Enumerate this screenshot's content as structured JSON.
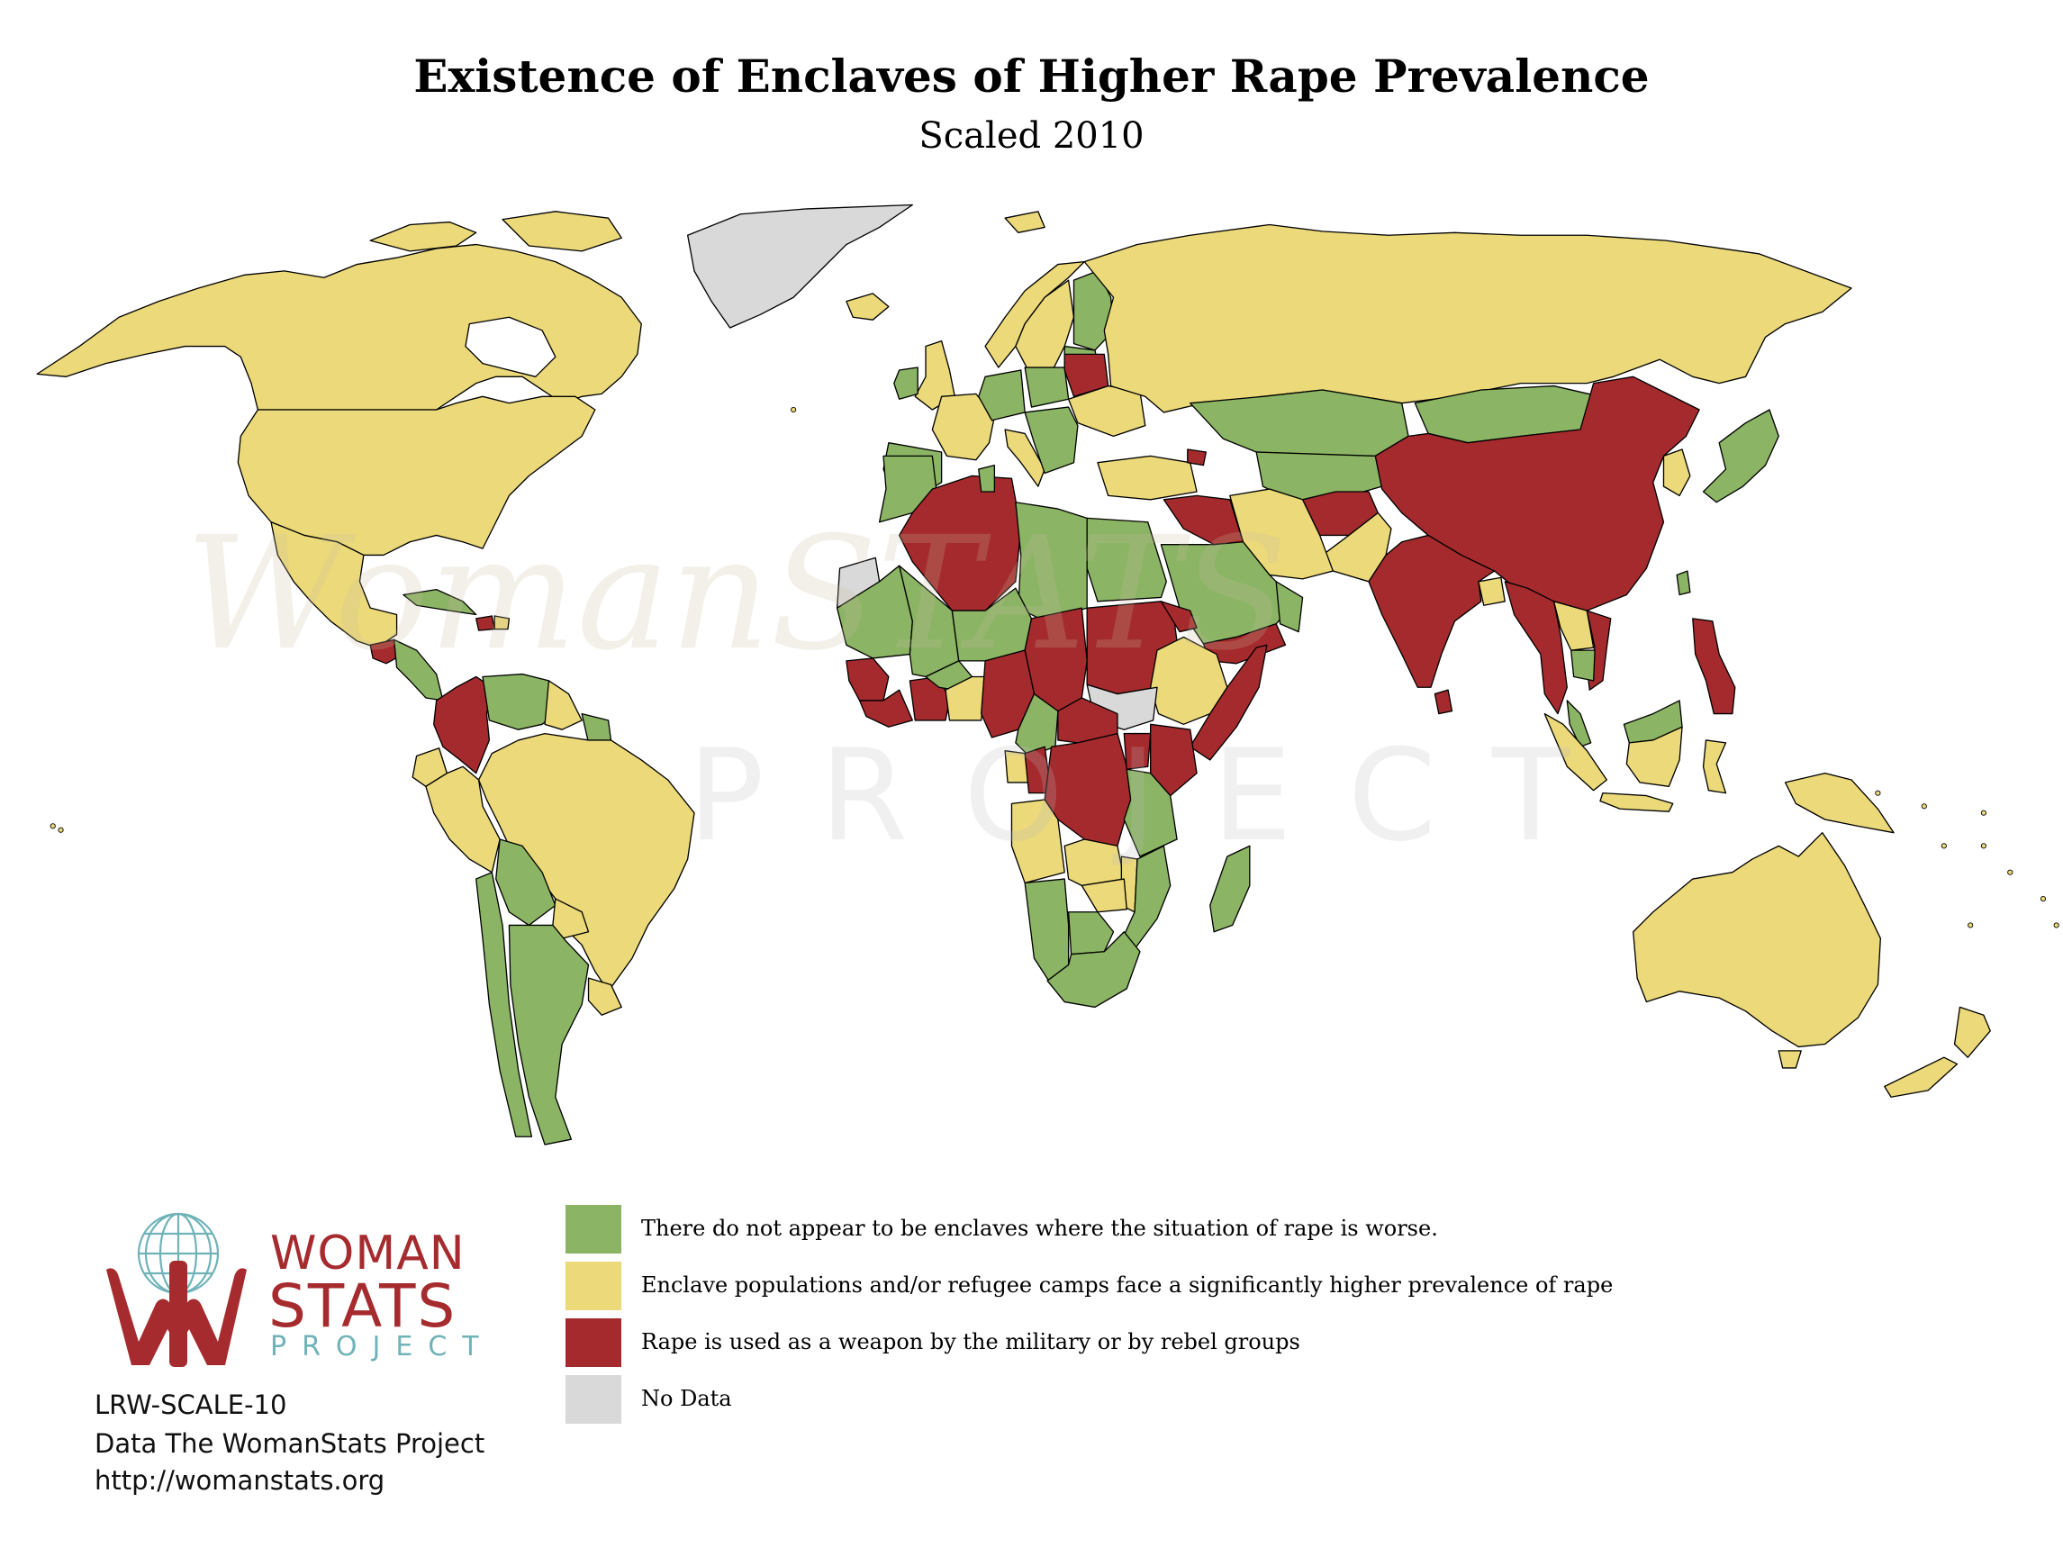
{
  "title": "Existence of Enclaves of Higher Rape Prevalence",
  "subtitle": "Scaled 2010",
  "colors": {
    "green": "#8bb464",
    "yellow": "#ebd97a",
    "red": "#a52a2d",
    "grey": "#d9d9d9",
    "outline": "#000000",
    "logo_red": "#a62b2e",
    "logo_teal": "#6fb3b8"
  },
  "legend": [
    {
      "label": "There do not appear to be enclaves where the situation of rape is worse.",
      "color": "#8bb464"
    },
    {
      "label": "Enclave populations and/or refugee camps face a significantly higher prevalence of rape",
      "color": "#ebd97a"
    },
    {
      "label": "Rape is used as a weapon by the military or by rebel groups",
      "color": "#a52a2d"
    },
    {
      "label": "No Data",
      "color": "#d9d9d9"
    }
  ],
  "logo": {
    "line1": "WOMAN",
    "line2": "STATS",
    "line3": "PROJECT",
    "icon": "globe-hands-icon"
  },
  "watermark": {
    "line1": "WomanSTATS",
    "line2": "PROJECT"
  },
  "footer": {
    "code": "LRW-SCALE-10",
    "source": "Data The WomanStats Project",
    "url": "http://womanstats.org"
  }
}
